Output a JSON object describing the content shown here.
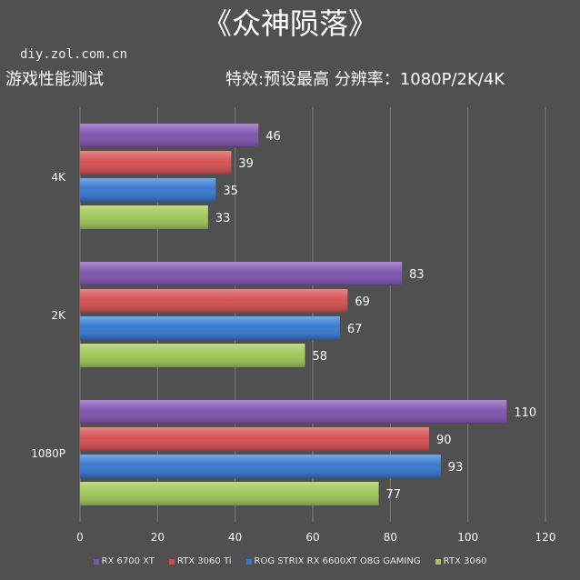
{
  "header": {
    "title": "《众神陨落》",
    "source": "diy.zol.com.cn",
    "subtitle_left": "游戏性能测试",
    "subtitle_right": "特效:预设最高  分辨率：1080P/2K/4K"
  },
  "colors": {
    "background": "#505050",
    "grid": "#7a7a7a"
  },
  "chart_data": {
    "type": "bar",
    "orientation": "horizontal",
    "categories": [
      "4K",
      "2K",
      "1080P"
    ],
    "series": [
      {
        "name": "RX 6700 XT",
        "color": "#7c4fae",
        "values": [
          46,
          83,
          110
        ]
      },
      {
        "name": "RTX 3060 Ti",
        "color": "#d24a4a",
        "values": [
          39,
          69,
          90
        ]
      },
      {
        "name": "ROG STRIX RX 6600XT O8G GAMING",
        "color": "#2f74d0",
        "values": [
          35,
          67,
          93
        ]
      },
      {
        "name": "RTX 3060",
        "color": "#9bc653",
        "values": [
          33,
          58,
          77
        ]
      }
    ],
    "xlim": [
      0,
      120
    ],
    "xticks": [
      0,
      20,
      40,
      60,
      80,
      100,
      120
    ],
    "grid": true,
    "legend_position": "bottom"
  }
}
